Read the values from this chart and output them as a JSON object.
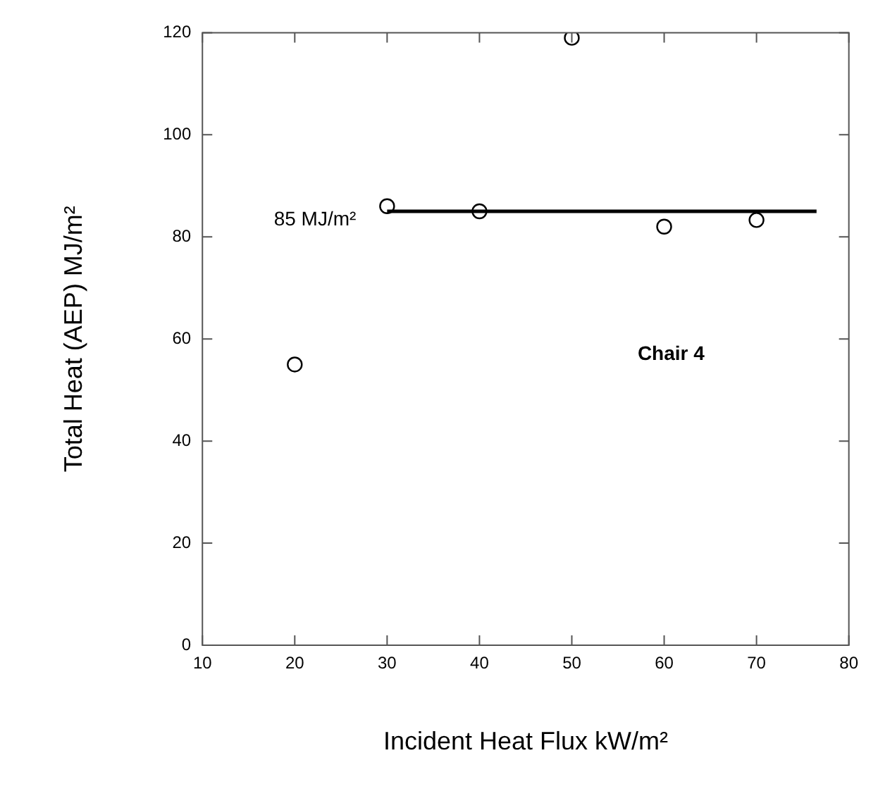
{
  "chart_data": {
    "type": "scatter",
    "xlabel": "Incident Heat Flux kW/m²",
    "ylabel": "Total Heat (AEP) MJ/m²",
    "x": [
      20,
      30,
      40,
      50,
      60,
      70
    ],
    "series": [
      {
        "color": "#000000",
        "marker": "circle",
        "values": [
          55,
          86,
          85,
          119,
          82,
          83.3
        ]
      },
      {
        "type": "line",
        "name": "85 MJ/m²",
        "color": "#000000",
        "marker": "none",
        "line_style": "solid",
        "x": [
          30,
          76.5
        ],
        "values": [
          85,
          85
        ]
      }
    ],
    "annotations": [
      "Chair 4"
    ],
    "xlim": [
      10,
      80
    ],
    "xticks": [
      10,
      20,
      30,
      40,
      50,
      60,
      70,
      80
    ],
    "ylim": [
      0,
      120
    ],
    "yticks": [
      0,
      20,
      40,
      60,
      80,
      100,
      120
    ],
    "grid": false,
    "legend": false
  }
}
